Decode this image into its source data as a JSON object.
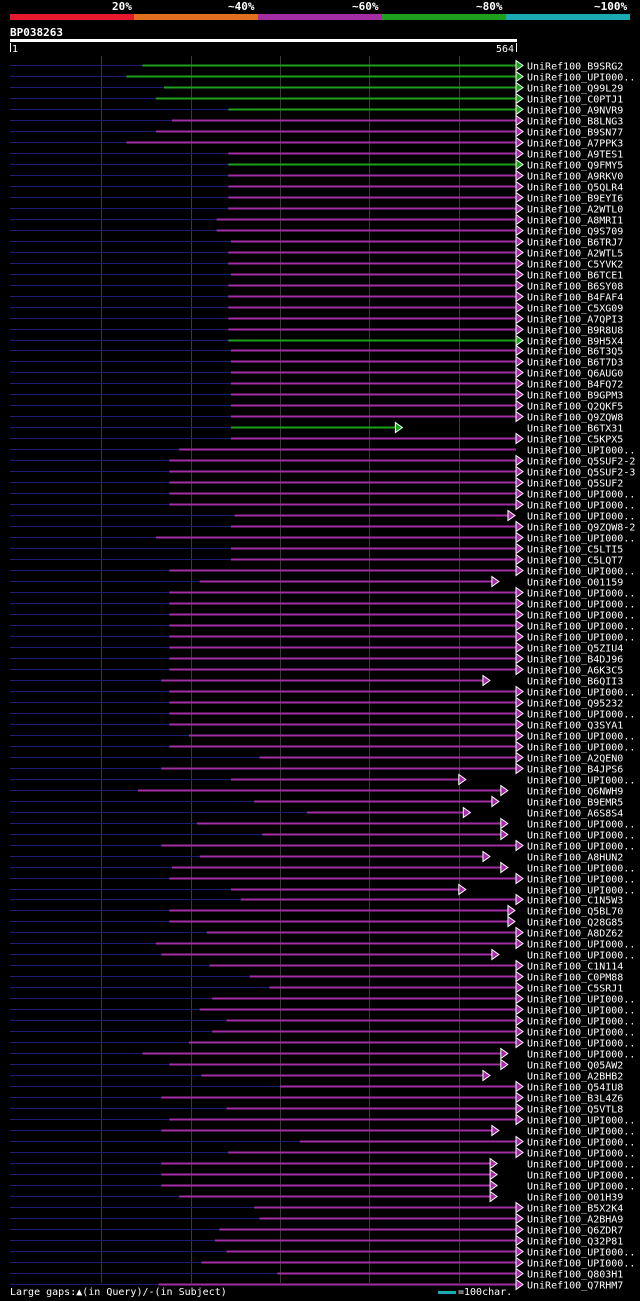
{
  "legend": {
    "ticks": [
      "20%",
      "~40%",
      "~60%",
      "~80%",
      "~100%"
    ],
    "colors": [
      "#e8192c",
      "#e07020",
      "#a32ea3",
      "#1ea01e",
      "#1aabb2"
    ]
  },
  "query_id": "BP038263",
  "chart_data": {
    "type": "alignment",
    "query_start": "1",
    "query_end": "564",
    "query_length": 564,
    "identity_bins": [
      "20%",
      "~40%",
      "~60%",
      "~80%",
      "~100%"
    ],
    "hits": [
      {
        "name": "UniRef100_B9SRG2",
        "start": 146,
        "end": 564,
        "bin": 3,
        "arrow": true
      },
      {
        "name": "UniRef100_UPI000..",
        "start": 128,
        "end": 564,
        "bin": 3,
        "arrow": true
      },
      {
        "name": "UniRef100_Q99L29",
        "start": 170,
        "end": 564,
        "bin": 3,
        "arrow": true
      },
      {
        "name": "UniRef100_C0PTJ1",
        "start": 161,
        "end": 564,
        "bin": 3,
        "arrow": true
      },
      {
        "name": "UniRef100_A9NVR9",
        "start": 242,
        "end": 564,
        "bin": 3,
        "arrow": true
      },
      {
        "name": "UniRef100_B8LNG3",
        "start": 179,
        "end": 564,
        "bin": 2,
        "arrow": true
      },
      {
        "name": "UniRef100_B9SN77",
        "start": 161,
        "end": 564,
        "bin": 2,
        "arrow": true
      },
      {
        "name": "UniRef100_A7PPK3",
        "start": 128,
        "end": 564,
        "bin": 2,
        "arrow": true
      },
      {
        "name": "UniRef100_A9TES1",
        "start": 242,
        "end": 564,
        "bin": 2,
        "arrow": true
      },
      {
        "name": "UniRef100_Q9FMY5",
        "start": 242,
        "end": 564,
        "bin": 3,
        "arrow": true
      },
      {
        "name": "UniRef100_A9RKV0",
        "start": 242,
        "end": 564,
        "bin": 2,
        "arrow": true
      },
      {
        "name": "UniRef100_Q5QLR4",
        "start": 242,
        "end": 564,
        "bin": 2,
        "arrow": true
      },
      {
        "name": "UniRef100_B9EYI6",
        "start": 242,
        "end": 564,
        "bin": 2,
        "arrow": true
      },
      {
        "name": "UniRef100_A2WTL0",
        "start": 242,
        "end": 564,
        "bin": 2,
        "arrow": true
      },
      {
        "name": "UniRef100_A8MRI1",
        "start": 229,
        "end": 564,
        "bin": 2,
        "arrow": true
      },
      {
        "name": "UniRef100_Q9S709",
        "start": 229,
        "end": 564,
        "bin": 2,
        "arrow": true
      },
      {
        "name": "UniRef100_B6TRJ7",
        "start": 245,
        "end": 564,
        "bin": 2,
        "arrow": true
      },
      {
        "name": "UniRef100_A2WTL5",
        "start": 242,
        "end": 564,
        "bin": 2,
        "arrow": true
      },
      {
        "name": "UniRef100_C5YVK2",
        "start": 242,
        "end": 564,
        "bin": 2,
        "arrow": true
      },
      {
        "name": "UniRef100_B6TCE1",
        "start": 245,
        "end": 564,
        "bin": 2,
        "arrow": true
      },
      {
        "name": "UniRef100_B6SY08",
        "start": 242,
        "end": 564,
        "bin": 2,
        "arrow": true
      },
      {
        "name": "UniRef100_B4FAF4",
        "start": 242,
        "end": 564,
        "bin": 2,
        "arrow": true
      },
      {
        "name": "UniRef100_C5XG09",
        "start": 242,
        "end": 564,
        "bin": 2,
        "arrow": true
      },
      {
        "name": "UniRef100_A7QPI3",
        "start": 242,
        "end": 564,
        "bin": 2,
        "arrow": true
      },
      {
        "name": "UniRef100_B9R8U8",
        "start": 242,
        "end": 564,
        "bin": 2,
        "arrow": true
      },
      {
        "name": "UniRef100_B9H5X4",
        "start": 242,
        "end": 564,
        "bin": 3,
        "arrow": true
      },
      {
        "name": "UniRef100_B6T3Q5",
        "start": 245,
        "end": 564,
        "bin": 2,
        "arrow": true
      },
      {
        "name": "UniRef100_B6T7D3",
        "start": 245,
        "end": 564,
        "bin": 2,
        "arrow": true
      },
      {
        "name": "UniRef100_Q6AUG0",
        "start": 245,
        "end": 564,
        "bin": 2,
        "arrow": true
      },
      {
        "name": "UniRef100_B4FQ72",
        "start": 245,
        "end": 564,
        "bin": 2,
        "arrow": true
      },
      {
        "name": "UniRef100_B9GPM3",
        "start": 245,
        "end": 564,
        "bin": 2,
        "arrow": true
      },
      {
        "name": "UniRef100_Q2QKF5",
        "start": 245,
        "end": 564,
        "bin": 2,
        "arrow": true
      },
      {
        "name": "UniRef100_Q9ZQW8",
        "start": 245,
        "end": 564,
        "bin": 2,
        "arrow": true
      },
      {
        "name": "UniRef100_B6TX31",
        "start": 245,
        "end": 429,
        "bin": 3,
        "arrow": true
      },
      {
        "name": "UniRef100_C5KPX5",
        "start": 245,
        "end": 564,
        "bin": 2,
        "arrow": true
      },
      {
        "name": "UniRef100_UPI000..",
        "start": 187,
        "end": 564,
        "bin": 2,
        "arrow": false
      },
      {
        "name": "UniRef100_Q5SUF2-2",
        "start": 176,
        "end": 564,
        "bin": 2,
        "arrow": true
      },
      {
        "name": "UniRef100_Q5SUF2-3",
        "start": 176,
        "end": 564,
        "bin": 2,
        "arrow": true
      },
      {
        "name": "UniRef100_Q5SUF2",
        "start": 176,
        "end": 564,
        "bin": 2,
        "arrow": true
      },
      {
        "name": "UniRef100_UPI000..",
        "start": 176,
        "end": 564,
        "bin": 2,
        "arrow": true
      },
      {
        "name": "UniRef100_UPI000..",
        "start": 176,
        "end": 564,
        "bin": 2,
        "arrow": true
      },
      {
        "name": "UniRef100_UPI000..",
        "start": 249,
        "end": 555,
        "bin": 2,
        "arrow": true
      },
      {
        "name": "UniRef100_Q9ZQW8-2",
        "start": 245,
        "end": 564,
        "bin": 2,
        "arrow": true
      },
      {
        "name": "UniRef100_UPI000..",
        "start": 161,
        "end": 564,
        "bin": 2,
        "arrow": true
      },
      {
        "name": "UniRef100_C5LTI5",
        "start": 245,
        "end": 564,
        "bin": 2,
        "arrow": true
      },
      {
        "name": "UniRef100_C5LQT7",
        "start": 245,
        "end": 564,
        "bin": 2,
        "arrow": true
      },
      {
        "name": "UniRef100_UPI000..",
        "start": 176,
        "end": 564,
        "bin": 2,
        "arrow": true
      },
      {
        "name": "UniRef100_O01159",
        "start": 210,
        "end": 537,
        "bin": 2,
        "arrow": true
      },
      {
        "name": "UniRef100_UPI000..",
        "start": 176,
        "end": 564,
        "bin": 2,
        "arrow": true
      },
      {
        "name": "UniRef100_UPI000..",
        "start": 176,
        "end": 564,
        "bin": 2,
        "arrow": true
      },
      {
        "name": "UniRef100_UPI000..",
        "start": 176,
        "end": 564,
        "bin": 2,
        "arrow": true
      },
      {
        "name": "UniRef100_UPI000..",
        "start": 176,
        "end": 564,
        "bin": 2,
        "arrow": true
      },
      {
        "name": "UniRef100_UPI000..",
        "start": 176,
        "end": 564,
        "bin": 2,
        "arrow": true
      },
      {
        "name": "UniRef100_Q5ZIU4",
        "start": 176,
        "end": 564,
        "bin": 2,
        "arrow": true
      },
      {
        "name": "UniRef100_B4DJ96",
        "start": 176,
        "end": 564,
        "bin": 2,
        "arrow": true
      },
      {
        "name": "UniRef100_A6K3C5",
        "start": 176,
        "end": 564,
        "bin": 2,
        "arrow": true
      },
      {
        "name": "UniRef100_B6QII3",
        "start": 167,
        "end": 527,
        "bin": 2,
        "arrow": true
      },
      {
        "name": "UniRef100_UPI000..",
        "start": 176,
        "end": 564,
        "bin": 2,
        "arrow": true
      },
      {
        "name": "UniRef100_Q95232",
        "start": 176,
        "end": 564,
        "bin": 2,
        "arrow": true
      },
      {
        "name": "UniRef100_UPI000..",
        "start": 176,
        "end": 564,
        "bin": 2,
        "arrow": true
      },
      {
        "name": "UniRef100_Q3SYA1",
        "start": 176,
        "end": 564,
        "bin": 2,
        "arrow": true
      },
      {
        "name": "UniRef100_UPI000..",
        "start": 198,
        "end": 564,
        "bin": 2,
        "arrow": true
      },
      {
        "name": "UniRef100_UPI000..",
        "start": 176,
        "end": 564,
        "bin": 2,
        "arrow": true
      },
      {
        "name": "UniRef100_A2QEN0",
        "start": 277,
        "end": 564,
        "bin": 2,
        "arrow": true
      },
      {
        "name": "UniRef100_B4JPS6",
        "start": 167,
        "end": 564,
        "bin": 2,
        "arrow": true
      },
      {
        "name": "UniRef100_UPI000..",
        "start": 245,
        "end": 500,
        "bin": 2,
        "arrow": true
      },
      {
        "name": "UniRef100_Q6NWH9",
        "start": 141,
        "end": 547,
        "bin": 2,
        "arrow": true
      },
      {
        "name": "UniRef100_B9EMR5",
        "start": 271,
        "end": 537,
        "bin": 2,
        "arrow": true
      },
      {
        "name": "UniRef100_A6S8S4",
        "start": 330,
        "end": 505,
        "bin": 2,
        "arrow": true
      },
      {
        "name": "UniRef100_UPI000..",
        "start": 207,
        "end": 547,
        "bin": 2,
        "arrow": true
      },
      {
        "name": "UniRef100_UPI000..",
        "start": 280,
        "end": 547,
        "bin": 2,
        "arrow": true
      },
      {
        "name": "UniRef100_UPI000..",
        "start": 167,
        "end": 564,
        "bin": 2,
        "arrow": true
      },
      {
        "name": "UniRef100_A8HUN2",
        "start": 210,
        "end": 527,
        "bin": 2,
        "arrow": true
      },
      {
        "name": "UniRef100_UPI000..",
        "start": 179,
        "end": 547,
        "bin": 2,
        "arrow": true
      },
      {
        "name": "UniRef100_UPI000..",
        "start": 176,
        "end": 564,
        "bin": 2,
        "arrow": true
      },
      {
        "name": "UniRef100_UPI000..",
        "start": 245,
        "end": 500,
        "bin": 2,
        "arrow": true
      },
      {
        "name": "UniRef100_C1N5W3",
        "start": 256,
        "end": 564,
        "bin": 2,
        "arrow": true
      },
      {
        "name": "UniRef100_Q5BL70",
        "start": 176,
        "end": 555,
        "bin": 2,
        "arrow": true
      },
      {
        "name": "UniRef100_Q28G85",
        "start": 176,
        "end": 555,
        "bin": 2,
        "arrow": true
      },
      {
        "name": "UniRef100_A8DZ62",
        "start": 218,
        "end": 564,
        "bin": 2,
        "arrow": true
      },
      {
        "name": "UniRef100_UPI000..",
        "start": 161,
        "end": 564,
        "bin": 2,
        "arrow": true
      },
      {
        "name": "UniRef100_UPI000..",
        "start": 167,
        "end": 537,
        "bin": 2,
        "arrow": true
      },
      {
        "name": "UniRef100_C1N114",
        "start": 221,
        "end": 564,
        "bin": 2,
        "arrow": true
      },
      {
        "name": "UniRef100_C0PM88",
        "start": 266,
        "end": 564,
        "bin": 2,
        "arrow": true
      },
      {
        "name": "UniRef100_C5SRJ1",
        "start": 288,
        "end": 564,
        "bin": 2,
        "arrow": true
      },
      {
        "name": "UniRef100_UPI000..",
        "start": 224,
        "end": 564,
        "bin": 2,
        "arrow": true
      },
      {
        "name": "UniRef100_UPI000..",
        "start": 210,
        "end": 564,
        "bin": 2,
        "arrow": true
      },
      {
        "name": "UniRef100_UPI000..",
        "start": 240,
        "end": 564,
        "bin": 2,
        "arrow": true
      },
      {
        "name": "UniRef100_UPI000..",
        "start": 224,
        "end": 564,
        "bin": 2,
        "arrow": true
      },
      {
        "name": "UniRef100_UPI000..",
        "start": 198,
        "end": 564,
        "bin": 2,
        "arrow": true
      },
      {
        "name": "UniRef100_UPI000..",
        "start": 146,
        "end": 547,
        "bin": 2,
        "arrow": true
      },
      {
        "name": "UniRef100_Q05AW2",
        "start": 176,
        "end": 547,
        "bin": 2,
        "arrow": true
      },
      {
        "name": "UniRef100_A2BHB2",
        "start": 212,
        "end": 527,
        "bin": 2,
        "arrow": true
      },
      {
        "name": "UniRef100_Q54IU8",
        "start": 300,
        "end": 564,
        "bin": 2,
        "arrow": true
      },
      {
        "name": "UniRef100_B3L4Z6",
        "start": 167,
        "end": 564,
        "bin": 2,
        "arrow": true
      },
      {
        "name": "UniRef100_Q5VTL8",
        "start": 240,
        "end": 564,
        "bin": 2,
        "arrow": true
      },
      {
        "name": "UniRef100_UPI000..",
        "start": 176,
        "end": 564,
        "bin": 2,
        "arrow": true
      },
      {
        "name": "UniRef100_UPI000..",
        "start": 167,
        "end": 537,
        "bin": 2,
        "arrow": true
      },
      {
        "name": "UniRef100_UPI000..",
        "start": 322,
        "end": 564,
        "bin": 2,
        "arrow": true
      },
      {
        "name": "UniRef100_UPI000..",
        "start": 242,
        "end": 564,
        "bin": 2,
        "arrow": true
      },
      {
        "name": "UniRef100_UPI000..",
        "start": 167,
        "end": 535,
        "bin": 2,
        "arrow": true
      },
      {
        "name": "UniRef100_UPI000..",
        "start": 167,
        "end": 535,
        "bin": 2,
        "arrow": true
      },
      {
        "name": "UniRef100_UPI000..",
        "start": 167,
        "end": 535,
        "bin": 2,
        "arrow": true
      },
      {
        "name": "UniRef100_O01H39",
        "start": 187,
        "end": 535,
        "bin": 2,
        "arrow": true
      },
      {
        "name": "UniRef100_B5X2K4",
        "start": 271,
        "end": 564,
        "bin": 2,
        "arrow": true
      },
      {
        "name": "UniRef100_A2BHA9",
        "start": 277,
        "end": 564,
        "bin": 2,
        "arrow": true
      },
      {
        "name": "UniRef100_Q6ZDR7",
        "start": 232,
        "end": 564,
        "bin": 2,
        "arrow": true
      },
      {
        "name": "UniRef100_Q32P81",
        "start": 227,
        "end": 564,
        "bin": 2,
        "arrow": true
      },
      {
        "name": "UniRef100_UPI000..",
        "start": 240,
        "end": 564,
        "bin": 2,
        "arrow": true
      },
      {
        "name": "UniRef100_UPI000..",
        "start": 212,
        "end": 564,
        "bin": 2,
        "arrow": true
      },
      {
        "name": "UniRef100_Q803H1",
        "start": 297,
        "end": 564,
        "bin": 2,
        "arrow": true
      },
      {
        "name": "UniRef100_Q7RHM7",
        "start": 164,
        "end": 564,
        "bin": 2,
        "arrow": true
      }
    ]
  },
  "footer": {
    "large_gaps": "Large gaps:",
    "in_query": "(in Query)/-",
    "in_subject": "(in Subject)",
    "scale": "=100char."
  }
}
